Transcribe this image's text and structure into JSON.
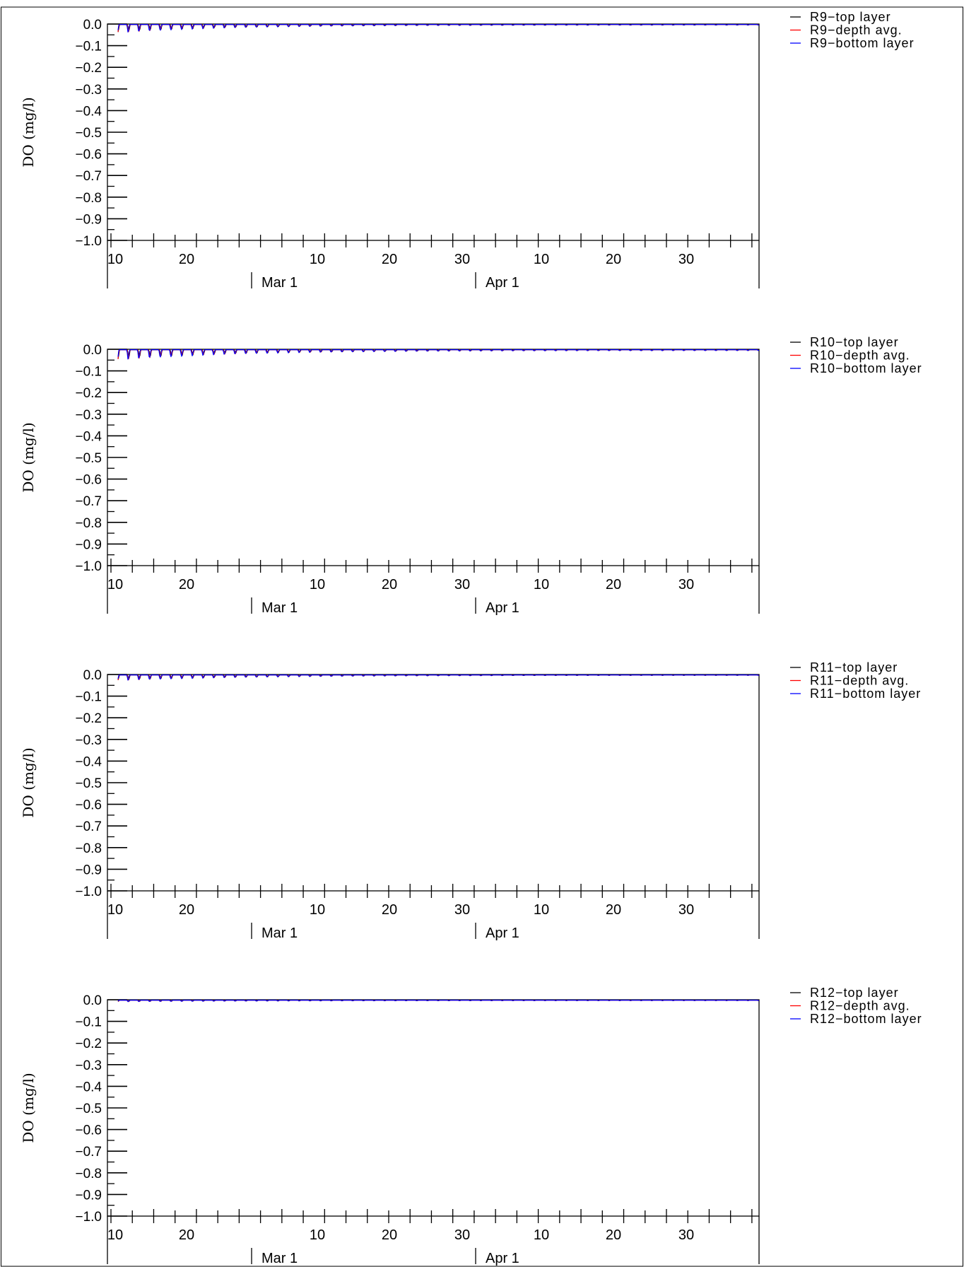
{
  "chart_data": [
    {
      "type": "line",
      "ylabel": "DO (mg/l)",
      "ylim": [
        -1.0,
        0.0
      ],
      "yticks": [
        "0.0",
        "−0.1",
        "−0.2",
        "−0.3",
        "−0.4",
        "−0.5",
        "−0.6",
        "−0.7",
        "−0.8",
        "−0.9",
        "−1.0"
      ],
      "x_tick_labels": [
        "10",
        "20",
        "10",
        "20",
        "30",
        "10",
        "20",
        "30"
      ],
      "month_labels": [
        "Mar 1",
        "Apr 1"
      ],
      "xlim": [
        "Feb 9",
        "Apr 9"
      ],
      "grid": false,
      "legend_position": "top-right-outside",
      "dips": {
        "start_amplitude": 0.045,
        "decay_days": 10,
        "floor_amplitude": 0.003
      },
      "series": [
        {
          "name": "R9−top layer",
          "color": "#000000"
        },
        {
          "name": "R9−depth avg.",
          "color": "#ff0000"
        },
        {
          "name": "R9−bottom layer",
          "color": "#0000ff"
        }
      ]
    },
    {
      "type": "line",
      "ylabel": "DO (mg/l)",
      "ylim": [
        -1.0,
        0.0
      ],
      "yticks": [
        "0.0",
        "−0.1",
        "−0.2",
        "−0.3",
        "−0.4",
        "−0.5",
        "−0.6",
        "−0.7",
        "−0.8",
        "−0.9",
        "−1.0"
      ],
      "x_tick_labels": [
        "10",
        "20",
        "10",
        "20",
        "30",
        "10",
        "20",
        "30"
      ],
      "month_labels": [
        "Mar 1",
        "Apr 1"
      ],
      "xlim": [
        "Feb 9",
        "Apr 9"
      ],
      "grid": false,
      "legend_position": "top-right-outside",
      "dips": {
        "start_amplitude": 0.055,
        "decay_days": 11,
        "floor_amplitude": 0.004
      },
      "series": [
        {
          "name": "R10−top layer",
          "color": "#000000"
        },
        {
          "name": "R10−depth avg.",
          "color": "#ff0000"
        },
        {
          "name": "R10−bottom layer",
          "color": "#0000ff"
        }
      ]
    },
    {
      "type": "line",
      "ylabel": "DO (mg/l)",
      "ylim": [
        -1.0,
        0.0
      ],
      "yticks": [
        "0.0",
        "−0.1",
        "−0.2",
        "−0.3",
        "−0.4",
        "−0.5",
        "−0.6",
        "−0.7",
        "−0.8",
        "−0.9",
        "−1.0"
      ],
      "x_tick_labels": [
        "10",
        "20",
        "10",
        "20",
        "30",
        "10",
        "20",
        "30"
      ],
      "month_labels": [
        "Mar 1",
        "Apr 1"
      ],
      "xlim": [
        "Feb 9",
        "Apr 9"
      ],
      "grid": false,
      "legend_position": "top-right-outside",
      "dips": {
        "start_amplitude": 0.03,
        "decay_days": 12,
        "floor_amplitude": 0.002
      },
      "series": [
        {
          "name": "R11−top layer",
          "color": "#000000"
        },
        {
          "name": "R11−depth avg.",
          "color": "#ff0000"
        },
        {
          "name": "R11−bottom layer",
          "color": "#0000ff"
        }
      ]
    },
    {
      "type": "line",
      "ylabel": "DO (mg/l)",
      "ylim": [
        -1.0,
        0.0
      ],
      "yticks": [
        "0.0",
        "−0.1",
        "−0.2",
        "−0.3",
        "−0.4",
        "−0.5",
        "−0.6",
        "−0.7",
        "−0.8",
        "−0.9",
        "−1.0"
      ],
      "x_tick_labels": [
        "10",
        "20",
        "10",
        "20",
        "30",
        "10",
        "20",
        "30"
      ],
      "month_labels": [
        "Mar 1",
        "Apr 1"
      ],
      "xlim": [
        "Feb 9",
        "Apr 9"
      ],
      "grid": false,
      "legend_position": "top-right-outside",
      "dips": {
        "start_amplitude": 0.008,
        "decay_days": 15,
        "floor_amplitude": 0.002
      },
      "series": [
        {
          "name": "R12−top layer",
          "color": "#000000"
        },
        {
          "name": "R12−depth avg.",
          "color": "#ff0000"
        },
        {
          "name": "R12−bottom layer",
          "color": "#0000ff"
        }
      ]
    }
  ]
}
